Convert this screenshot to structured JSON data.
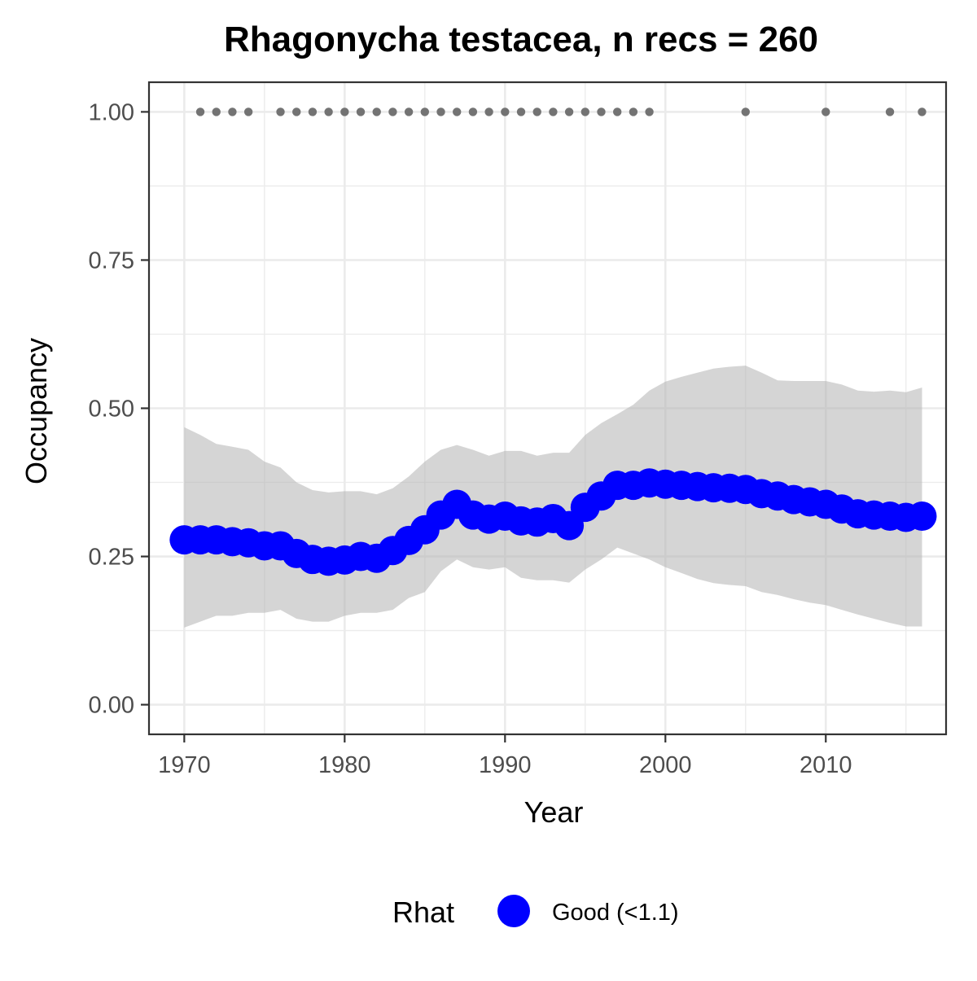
{
  "chart_data": {
    "type": "line",
    "title": "Rhagonycha testacea, n recs = 260",
    "xlabel": "Year",
    "ylabel": "Occupancy",
    "xlim": [
      1967.8,
      2017.5
    ],
    "ylim": [
      -0.05,
      1.05
    ],
    "x_ticks": [
      1970,
      1980,
      1990,
      2000,
      2010
    ],
    "x_tick_labels": [
      "1970",
      "1980",
      "1990",
      "2000",
      "2010"
    ],
    "x_minor_ticks": [
      1975,
      1985,
      1995,
      2005,
      2015
    ],
    "y_ticks": [
      0,
      0.25,
      0.5,
      0.75,
      1.0
    ],
    "y_tick_labels": [
      "0.00",
      "0.25",
      "0.50",
      "0.75",
      "1.00"
    ],
    "y_minor_ticks": [
      0.125,
      0.375,
      0.625,
      0.875
    ],
    "grid": true,
    "legend": {
      "title": "Rhat",
      "position": "bottom",
      "entries": [
        {
          "label": "Good (<1.1)",
          "color": "#0000ff"
        }
      ]
    },
    "colors": {
      "series": "#0000ff",
      "ribbon": "#d6d6d6",
      "records": "#737373",
      "grid": "#ebebeb",
      "panel_border": "#333333"
    },
    "series": [
      {
        "x": [
          1970,
          1971,
          1972,
          1973,
          1974,
          1975,
          1976,
          1977,
          1978,
          1979,
          1980,
          1981,
          1982,
          1983,
          1984,
          1985,
          1986,
          1987,
          1988,
          1989,
          1990,
          1991,
          1992,
          1993,
          1994,
          1995,
          1996,
          1997,
          1998,
          1999,
          2000,
          2001,
          2002,
          2003,
          2004,
          2005,
          2006,
          2007,
          2008,
          2009,
          2010,
          2011,
          2012,
          2013,
          2014,
          2015,
          2016
        ],
        "values": [
          0.278,
          0.278,
          0.278,
          0.275,
          0.273,
          0.268,
          0.268,
          0.255,
          0.245,
          0.242,
          0.244,
          0.25,
          0.247,
          0.26,
          0.277,
          0.295,
          0.32,
          0.338,
          0.32,
          0.313,
          0.318,
          0.31,
          0.308,
          0.314,
          0.302,
          0.333,
          0.352,
          0.37,
          0.37,
          0.374,
          0.372,
          0.37,
          0.368,
          0.366,
          0.365,
          0.363,
          0.356,
          0.352,
          0.346,
          0.342,
          0.338,
          0.33,
          0.322,
          0.32,
          0.318,
          0.316,
          0.318
        ],
        "lower": [
          0.13,
          0.14,
          0.15,
          0.15,
          0.155,
          0.155,
          0.16,
          0.145,
          0.14,
          0.14,
          0.15,
          0.155,
          0.155,
          0.16,
          0.18,
          0.19,
          0.225,
          0.245,
          0.232,
          0.228,
          0.232,
          0.214,
          0.21,
          0.21,
          0.206,
          0.228,
          0.245,
          0.265,
          0.255,
          0.245,
          0.232,
          0.222,
          0.212,
          0.205,
          0.202,
          0.2,
          0.19,
          0.185,
          0.178,
          0.172,
          0.168,
          0.16,
          0.152,
          0.145,
          0.138,
          0.132,
          0.132
        ],
        "upper": [
          0.468,
          0.455,
          0.44,
          0.435,
          0.43,
          0.41,
          0.4,
          0.375,
          0.362,
          0.358,
          0.36,
          0.36,
          0.355,
          0.365,
          0.385,
          0.41,
          0.43,
          0.438,
          0.43,
          0.42,
          0.428,
          0.428,
          0.42,
          0.425,
          0.425,
          0.455,
          0.475,
          0.49,
          0.506,
          0.53,
          0.545,
          0.553,
          0.56,
          0.567,
          0.57,
          0.572,
          0.56,
          0.547,
          0.546,
          0.546,
          0.546,
          0.54,
          0.53,
          0.528,
          0.53,
          0.527,
          0.535
        ]
      }
    ],
    "records": {
      "y": 1.0,
      "years": [
        1971,
        1972,
        1973,
        1974,
        1976,
        1977,
        1978,
        1979,
        1980,
        1981,
        1982,
        1983,
        1984,
        1985,
        1986,
        1987,
        1988,
        1989,
        1990,
        1991,
        1992,
        1993,
        1994,
        1995,
        1996,
        1997,
        1998,
        1999,
        2005,
        2010,
        2014,
        2016
      ]
    }
  }
}
